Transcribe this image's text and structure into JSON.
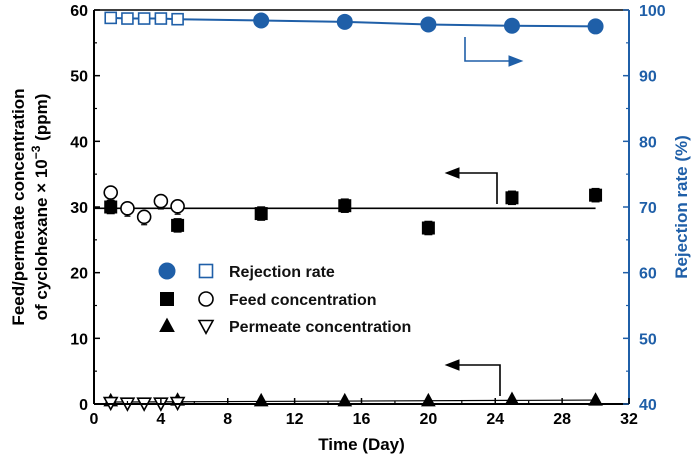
{
  "chart_data": {
    "type": "scatter",
    "x": {
      "label": "Time (Day)",
      "range": [
        0,
        32
      ],
      "ticks": [
        0,
        4,
        8,
        12,
        16,
        20,
        24,
        28,
        32
      ]
    },
    "y_left": {
      "label_line1": "Feed/permeate concentration",
      "label_line2_prefix": "of cyclohexane × 10",
      "label_line2_exponent": "−3",
      "label_line2_suffix": " (ppm)",
      "range": [
        0,
        60
      ],
      "ticks": [
        0,
        10,
        20,
        30,
        40,
        50,
        60
      ]
    },
    "y_right": {
      "label": "Rejection rate (%)",
      "range": [
        40,
        100
      ],
      "ticks": [
        40,
        50,
        60,
        70,
        80,
        90,
        100
      ]
    },
    "colors": {
      "black": "#000000",
      "blue": "#1f5fa8"
    },
    "series": [
      {
        "name": "Rejection rate",
        "axis": "right",
        "marker_filled": "circle",
        "marker_open": "square",
        "color": "#1f5fa8",
        "open_points": [
          [
            1,
            98.8
          ],
          [
            2,
            98.7
          ],
          [
            3,
            98.7
          ],
          [
            4,
            98.7
          ],
          [
            5,
            98.6
          ]
        ],
        "filled_points": [
          [
            10,
            98.4
          ],
          [
            15,
            98.2
          ],
          [
            20,
            97.8
          ],
          [
            25,
            97.6
          ],
          [
            30,
            97.5
          ]
        ]
      },
      {
        "name": "Feed concentration",
        "axis": "left",
        "marker_filled": "square",
        "marker_open": "circle",
        "color": "#000000",
        "open_points": [
          [
            1,
            32.2
          ],
          [
            2,
            29.8
          ],
          [
            3,
            28.5
          ],
          [
            4,
            30.9
          ],
          [
            5,
            30.1
          ]
        ],
        "filled_points": [
          [
            1,
            30.0
          ],
          [
            5,
            27.2
          ],
          [
            10,
            29.0
          ],
          [
            15,
            30.2
          ],
          [
            20,
            26.8
          ],
          [
            25,
            31.4
          ],
          [
            30,
            31.8
          ]
        ],
        "error": 1.0
      },
      {
        "name": "Permeate concentration",
        "axis": "left",
        "marker_filled": "triangle-up",
        "marker_open": "triangle-down",
        "color": "#000000",
        "open_points": [
          [
            1,
            0.2
          ],
          [
            2,
            0.1
          ],
          [
            3,
            0.1
          ],
          [
            4,
            0.1
          ],
          [
            5,
            0.2
          ]
        ],
        "filled_points": [
          [
            1,
            0.5
          ],
          [
            5,
            0.6
          ],
          [
            10,
            0.5
          ],
          [
            15,
            0.5
          ],
          [
            20,
            0.5
          ],
          [
            25,
            0.7
          ],
          [
            30,
            0.6
          ]
        ]
      }
    ],
    "reference_lines": [
      {
        "axis": "left",
        "y": 29.8,
        "x_range": [
          0,
          30
        ],
        "color": "#000000"
      },
      {
        "axis": "left",
        "y_start": 0.3,
        "y_end": 0.6,
        "x_range": [
          1,
          30
        ],
        "color": "#000000"
      }
    ],
    "indicator_arrows": [
      {
        "direction": "right",
        "color": "#1f5fa8"
      },
      {
        "direction": "left",
        "color": "#000000"
      },
      {
        "direction": "left",
        "color": "#000000"
      }
    ],
    "legend": {
      "position": "middle-left",
      "entries": [
        "Rejection rate",
        "Feed concentration",
        "Permeate concentration"
      ]
    }
  }
}
